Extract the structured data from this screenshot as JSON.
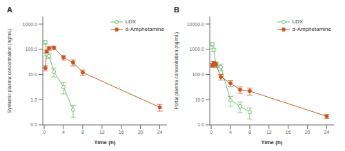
{
  "chart_data": [
    {
      "type": "line",
      "title": "A",
      "x_label": "Time (h)",
      "y_label": "Systemic plasma concentration (ng/mL)",
      "log": "y",
      "grid": false,
      "legend": "upper right",
      "xlim": [
        -0.3,
        25.5
      ],
      "xticks": [
        0,
        4,
        8,
        12,
        16,
        20,
        24
      ],
      "ylim": [
        0.1,
        2000
      ],
      "yticks": [
        0.1,
        {
          "value": 1.0,
          "label": "1.0"
        },
        {
          "value": 10.0,
          "label": "10.0"
        },
        {
          "value": 100.0,
          "label": "100.0"
        },
        {
          "value": 1000.0,
          "label": "1000.0"
        }
      ],
      "series": [
        {
          "name": "LDX",
          "color": "#6abf69",
          "marker": "open_circle",
          "x": [
            0.25,
            0.5,
            1,
            2,
            4,
            6
          ],
          "values": [
            190,
            65,
            55,
            13,
            3.2,
            0.4
          ],
          "yerr": [
            30,
            10,
            12,
            5,
            1.5,
            0.2
          ]
        },
        {
          "name": "d-Amphetamine",
          "color": "#cc5522",
          "marker": "circle",
          "x": [
            0.25,
            0.5,
            1,
            2,
            4,
            6,
            8,
            24
          ],
          "values": [
            18,
            80,
            110,
            115,
            47,
            30,
            12,
            0.5
          ],
          "yerr": [
            4,
            12,
            18,
            18,
            10,
            8,
            3,
            0.15
          ]
        }
      ]
    },
    {
      "type": "line",
      "title": "B",
      "x_label": "Time (h)",
      "y_label": "Portal plasma concentration (ng/mL)",
      "log": "y",
      "grid": false,
      "legend": "upper right",
      "xlim": [
        -0.3,
        25.5
      ],
      "xticks": [
        0,
        4,
        8,
        12,
        16,
        20,
        24
      ],
      "ylim": [
        1.0,
        20000
      ],
      "yticks": [
        {
          "value": 1.0,
          "label": "1.0"
        },
        {
          "value": 10.0,
          "label": "10.0"
        },
        {
          "value": 100.0,
          "label": "100.0"
        },
        {
          "value": 1000.0,
          "label": "1000.0"
        },
        {
          "value": 10000.0,
          "label": "10000.0"
        }
      ],
      "series": [
        {
          "name": "LDX",
          "color": "#6abf69",
          "marker": "open_circle",
          "x": [
            0.25,
            0.5,
            1,
            2,
            4,
            6,
            8
          ],
          "values": [
            1600,
            950,
            250,
            200,
            9.5,
            5.5,
            3.2
          ],
          "yerr": [
            250,
            150,
            60,
            60,
            4,
            2.5,
            1.5
          ]
        },
        {
          "name": "d-Amphetamine",
          "color": "#cc5522",
          "marker": "circle",
          "x": [
            0.25,
            0.5,
            1,
            2,
            4,
            6,
            8,
            24
          ],
          "values": [
            230,
            280,
            250,
            80,
            45,
            25,
            22,
            2.2
          ],
          "yerr": [
            40,
            50,
            50,
            20,
            12,
            7,
            7,
            0.4
          ]
        }
      ]
    }
  ]
}
